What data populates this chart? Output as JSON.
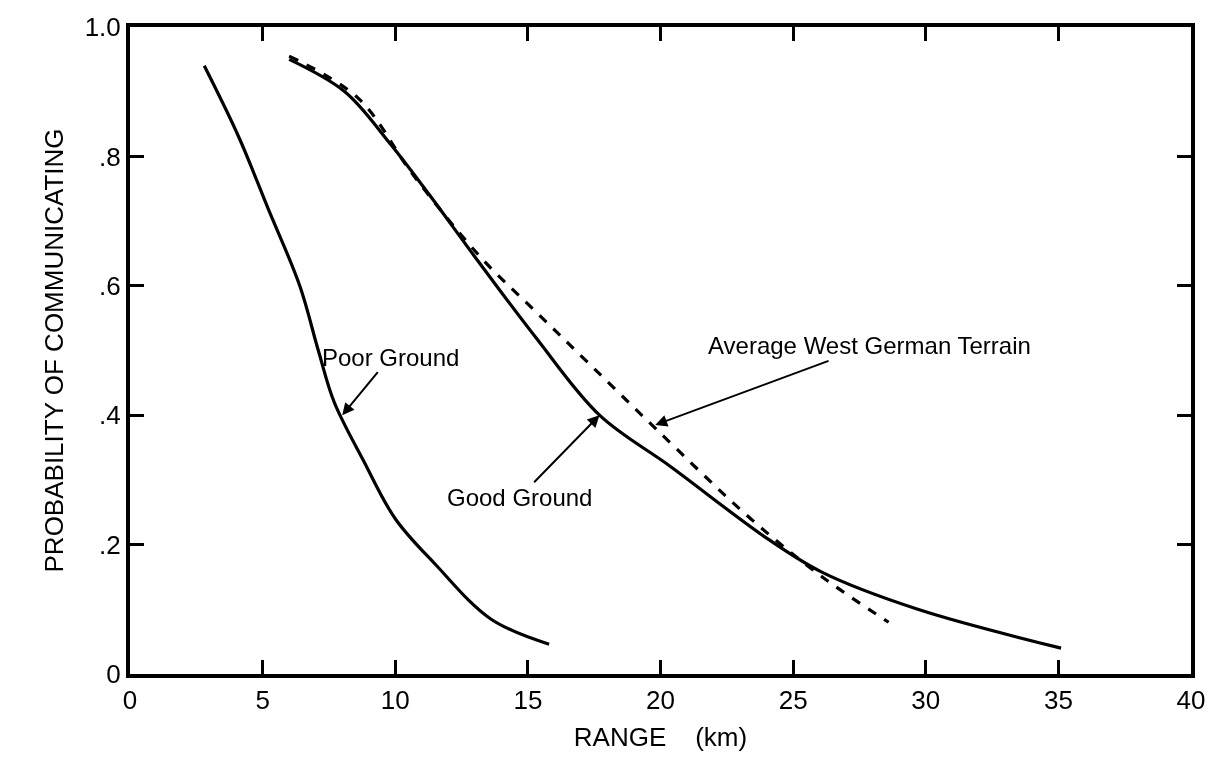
{
  "chart_data": {
    "type": "line",
    "xlabel": "RANGE    (km)",
    "ylabel": "PROBABILITY OF COMMUNICATING",
    "series": [
      {
        "color": "#000000",
        "line_style": "solid",
        "x": [
          2.8,
          4.1,
          5.2,
          6.4,
          7.1,
          7.7,
          8.8,
          10.0,
          11.5,
          13.6,
          15.8
        ],
        "values": [
          0.94,
          0.83,
          0.72,
          0.6,
          0.5,
          0.42,
          0.33,
          0.24,
          0.17,
          0.085,
          0.046
        ]
      },
      {
        "color": "#000000",
        "line_style": "solid",
        "x": [
          6.0,
          8.1,
          9.8,
          11.3,
          13.0,
          15.3,
          17.7,
          20.4,
          24.0,
          26.1,
          29.7,
          35.1
        ],
        "values": [
          0.95,
          0.9,
          0.82,
          0.74,
          0.645,
          0.52,
          0.4,
          0.32,
          0.21,
          0.157,
          0.1,
          0.04
        ]
      },
      {
        "color": "#000000",
        "line_style": "dashed",
        "x": [
          6.0,
          8.6,
          10.7,
          13.2,
          15.3,
          17.3,
          19.8,
          23.4,
          26.1,
          28.6
        ],
        "values": [
          0.955,
          0.89,
          0.77,
          0.645,
          0.56,
          0.48,
          0.38,
          0.24,
          0.15,
          0.08
        ]
      }
    ],
    "annotations": [
      {
        "text": "Poor Ground",
        "x": 8.0,
        "y": 0.4
      },
      {
        "text": "Good Ground",
        "x": 17.7,
        "y": 0.4
      },
      {
        "text": "Average West German Terrain",
        "x": 19.8,
        "y": 0.385
      }
    ],
    "xlim": [
      0,
      40
    ],
    "xticks": [
      0,
      5,
      10,
      15,
      20,
      25,
      30,
      35,
      40
    ],
    "ylim": [
      0,
      1.0
    ],
    "yticks": [
      0,
      {
        "value": 0.2,
        "label": ".2"
      },
      {
        "value": 0.4,
        "label": ".4"
      },
      {
        "value": 0.6,
        "label": ".6"
      },
      {
        "value": 0.8,
        "label": ".8"
      },
      {
        "value": 1.0,
        "label": "1.0"
      }
    ],
    "marker": "none"
  }
}
